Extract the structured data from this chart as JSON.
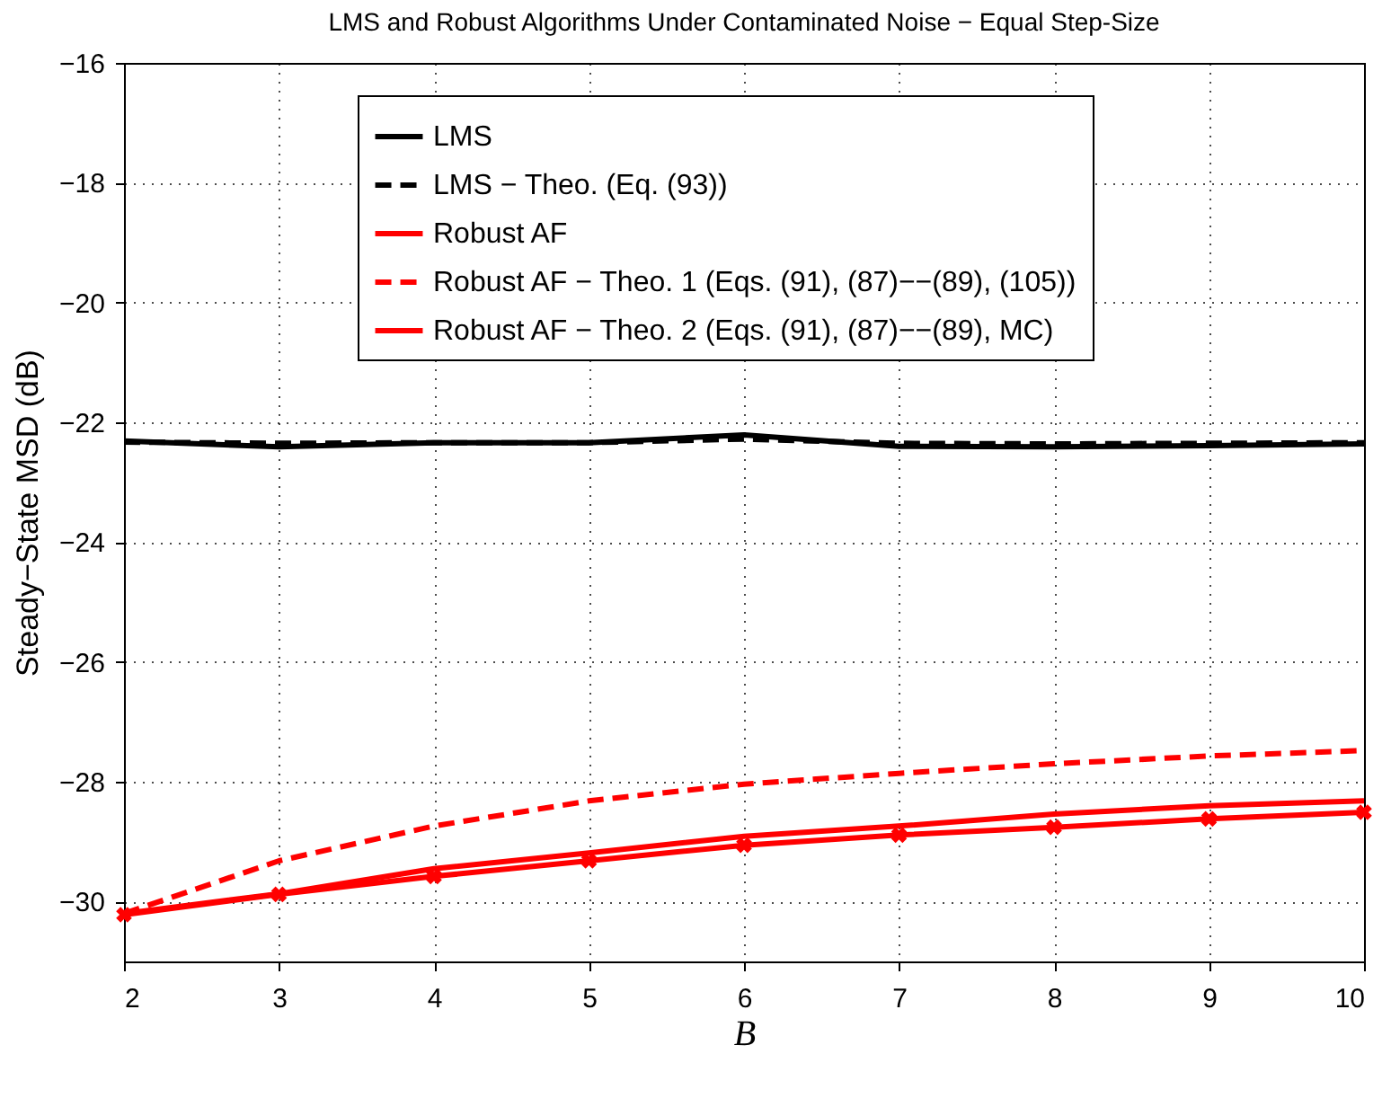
{
  "chart_data": {
    "type": "line",
    "title": "LMS and Robust Algorithms Under Contaminated Noise − Equal Step-Size",
    "xlabel": "B",
    "ylabel": "Steady−State MSD (dB)",
    "x": [
      2,
      3,
      4,
      5,
      6,
      7,
      8,
      9,
      10
    ],
    "series": [
      {
        "name": "LMS",
        "color": "#000000",
        "line_style": "solid",
        "values": [
          -22.31,
          -22.41,
          -22.34,
          -22.34,
          -22.21,
          -22.4,
          -22.41,
          -22.39,
          -22.36
        ]
      },
      {
        "name": "LMS − Theo. (Eq. (93))",
        "color": "#000000",
        "line_style": "dashed",
        "values": [
          -22.33,
          -22.35,
          -22.34,
          -22.34,
          -22.28,
          -22.35,
          -22.36,
          -22.35,
          -22.34
        ]
      },
      {
        "name": "Robust AF",
        "color": "#ff0000",
        "line_style": "solid",
        "values": [
          -30.2,
          -29.87,
          -29.45,
          -29.19,
          -28.91,
          -28.74,
          -28.54,
          -28.4,
          -28.32
        ]
      },
      {
        "name": "Robust AF − Theo. 1 (Eqs. (91), (87)−−(89), (105))",
        "color": "#ff0000",
        "line_style": "dashed",
        "values": [
          -30.2,
          -29.32,
          -28.74,
          -28.32,
          -28.04,
          -27.86,
          -27.7,
          -27.57,
          -27.48
        ]
      },
      {
        "name": "Robust AF − Theo. 2 (Eqs. (91), (87)−−(89), MC)",
        "color": "#ff0000",
        "line_style": "solid",
        "marker": "cross",
        "values": [
          -30.22,
          -29.88,
          -29.58,
          -29.32,
          -29.06,
          -28.89,
          -28.76,
          -28.62,
          -28.51
        ]
      }
    ],
    "xlim": [
      2,
      10
    ],
    "xticks": [
      2,
      3,
      4,
      5,
      6,
      7,
      8,
      9,
      10
    ],
    "ylim": [
      -31,
      -16
    ],
    "yticks": [
      -30,
      -28,
      -26,
      -24,
      -22,
      -20,
      -18,
      -16
    ],
    "grid": true,
    "legend": "top"
  }
}
